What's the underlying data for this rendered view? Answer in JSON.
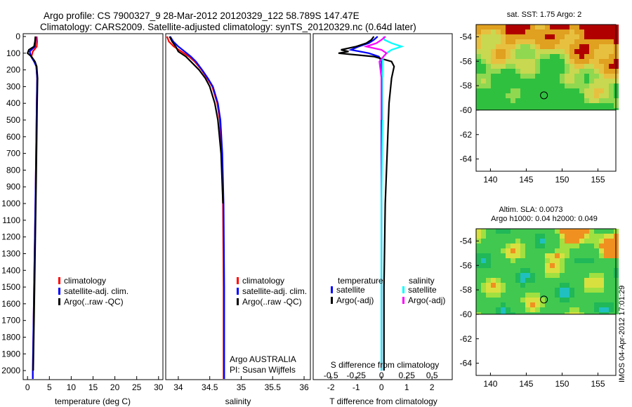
{
  "header": {
    "line1": "Argo profile: CS 7900327_9 28-Mar-2012 20120329_122 58.789S 147.47E",
    "line2": "Climatology: CARS2009. Satellite-adjusted climatology: synTS_20120329.nc (0.64d later)"
  },
  "watermark": "IMOS 04-Apr-2012 17:01:29",
  "chart_data": [
    {
      "id": "temperature",
      "type": "line",
      "xlabel": "temperature (deg C)",
      "ylabel": "",
      "xlim": [
        -1,
        31
      ],
      "ylim": [
        2050,
        0
      ],
      "x_ticks": [
        0,
        5,
        10,
        15,
        20,
        25,
        30
      ],
      "y_ticks": [
        0,
        100,
        200,
        300,
        400,
        500,
        600,
        700,
        800,
        900,
        1000,
        1100,
        1200,
        1300,
        1400,
        1500,
        1600,
        1700,
        1800,
        1900,
        2000
      ],
      "legend": [
        "climatology",
        "satellite-adj. clim.",
        "Argo(..raw -QC)"
      ],
      "legend_placement": "lower-center",
      "series": [
        {
          "name": "climatology",
          "color": "#ff0000",
          "depth": [
            0,
            30,
            60,
            90,
            120,
            150,
            180,
            250,
            400,
            600,
            1000,
            1500,
            2000,
            2050
          ],
          "values": [
            2.1,
            2.2,
            2.1,
            1.2,
            0.9,
            1.6,
            2.0,
            2.2,
            2.1,
            2.0,
            1.8,
            1.5,
            1.2,
            1.2
          ]
        },
        {
          "name": "satellite-adj. clim.",
          "color": "#0000ff",
          "depth": [
            0,
            30,
            60,
            90,
            120,
            150,
            180,
            250,
            400,
            600,
            1000,
            1500,
            2000,
            2050
          ],
          "values": [
            1.9,
            1.8,
            1.7,
            0.5,
            0.8,
            1.5,
            2.0,
            2.2,
            2.1,
            2.0,
            1.8,
            1.5,
            1.2,
            1.2
          ]
        },
        {
          "name": "Argo(..raw -QC)",
          "color": "#000000",
          "depth": [
            0,
            30,
            60,
            80,
            100,
            120,
            150,
            180,
            250,
            400,
            600,
            1000,
            1500,
            2000
          ],
          "values": [
            1.8,
            1.7,
            1.5,
            0.3,
            0.0,
            0.9,
            1.7,
            2.1,
            2.3,
            2.2,
            2.1,
            1.9,
            1.6,
            1.3
          ]
        }
      ]
    },
    {
      "id": "salinity",
      "type": "line",
      "xlabel": "salinity",
      "ylabel": "",
      "xlim": [
        33.8,
        36.1
      ],
      "ylim": [
        2050,
        0
      ],
      "x_ticks": [
        34,
        34.5,
        35,
        35.5,
        36
      ],
      "legend": [
        "climatology",
        "satellite-adj. clim.",
        "Argo(..raw -QC)"
      ],
      "legend_placement": "lower-right",
      "annotation": [
        "Argo AUSTRALIA",
        "PI: Susan Wijffels"
      ],
      "series": [
        {
          "name": "climatology",
          "color": "#ff0000",
          "depth": [
            0,
            30,
            60,
            90,
            120,
            150,
            200,
            250,
            300,
            400,
            500,
            700,
            1000,
            1500,
            2000,
            2050
          ],
          "values": [
            33.82,
            33.85,
            33.93,
            34.05,
            34.17,
            34.26,
            34.37,
            34.46,
            34.54,
            34.62,
            34.66,
            34.69,
            34.71,
            34.72,
            34.72,
            34.72
          ]
        },
        {
          "name": "satellite-adj. clim.",
          "color": "#0000ff",
          "depth": [
            0,
            30,
            60,
            90,
            120,
            150,
            200,
            250,
            300,
            400,
            500,
            700,
            1000,
            1500,
            2000,
            2050
          ],
          "values": [
            33.87,
            33.92,
            34.0,
            34.1,
            34.2,
            34.28,
            34.38,
            34.47,
            34.55,
            34.63,
            34.67,
            34.7,
            34.72,
            34.73,
            34.73,
            34.73
          ]
        },
        {
          "name": "Argo(..raw -QC)",
          "color": "#000000",
          "depth": [
            0,
            30,
            60,
            90,
            120,
            150,
            200,
            250,
            300,
            400,
            500,
            700,
            1000
          ],
          "values": [
            33.86,
            33.9,
            33.96,
            34.0,
            34.12,
            34.2,
            34.33,
            34.43,
            34.5,
            34.58,
            34.63,
            34.68,
            34.71
          ]
        }
      ]
    },
    {
      "id": "differences",
      "type": "line",
      "xlabel": "T difference from climatology",
      "x2label": "S difference from climatology",
      "xlim": [
        -2.7,
        2.8
      ],
      "x_ticks": [
        -2,
        -1,
        0,
        1,
        2
      ],
      "x2lim": [
        -0.675,
        0.7
      ],
      "x2_ticks": [
        -0.5,
        -0.25,
        0,
        0.25,
        0.5
      ],
      "x2_tick_labels": [
        "-0.5",
        "-0.25",
        "0",
        "0.25",
        "0.5"
      ],
      "ylim": [
        2050,
        0
      ],
      "legend_temperature_title": "temperature",
      "legend_salinity_title": "salinity",
      "legend": [
        "satellite",
        "Argo(-adj)",
        "satellite",
        "Argo(-adj)"
      ],
      "legend_placement": "center",
      "series": [
        {
          "name": "satellite",
          "group": "temperature",
          "color": "#0000ff",
          "depth": [
            0,
            20,
            40,
            60,
            80,
            100,
            120,
            150,
            200,
            300,
            500,
            1000,
            1500,
            2000
          ],
          "values": [
            -0.15,
            -0.3,
            -0.5,
            -0.9,
            -1.2,
            -0.5,
            -0.1,
            0.0,
            0.0,
            0.0,
            0.0,
            0.0,
            0.0,
            0.0
          ]
        },
        {
          "name": "Argo(-adj)",
          "group": "temperature",
          "color": "#000000",
          "depth": [
            0,
            20,
            40,
            60,
            80,
            90,
            100,
            120,
            150,
            180,
            250,
            400,
            600,
            1000,
            1500,
            2000
          ],
          "values": [
            -0.3,
            -0.4,
            -0.6,
            -1.0,
            -1.6,
            -1.3,
            -1.7,
            -0.3,
            0.4,
            0.5,
            0.4,
            0.3,
            0.25,
            0.15,
            0.1,
            0.1
          ]
        },
        {
          "name": "satellite",
          "group": "salinity",
          "color": "#00ffff",
          "depth": [
            0,
            20,
            40,
            60,
            80,
            100,
            120,
            150,
            200,
            300,
            500,
            1000,
            1500,
            2000
          ],
          "values": [
            0.02,
            0.03,
            0.1,
            0.2,
            0.1,
            0.05,
            0.02,
            0.01,
            0.01,
            0.01,
            0.01,
            0.0,
            0.0,
            0.0
          ]
        },
        {
          "name": "Argo(-adj)",
          "group": "salinity",
          "color": "#ff00ff",
          "depth": [
            0,
            20,
            40,
            60,
            80,
            100,
            120,
            150,
            200,
            250,
            300,
            400,
            500
          ],
          "values": [
            0.04,
            0.0,
            -0.05,
            -0.15,
            0.0,
            0.05,
            0.02,
            -0.02,
            -0.01,
            0.0,
            0.0,
            0.0,
            0.0
          ]
        }
      ]
    },
    {
      "id": "sst-map",
      "type": "heatmap",
      "title": "sat. SST: 1.75  Argo: 2",
      "xlim": [
        138,
        157.5
      ],
      "ylim": [
        -65,
        -53
      ],
      "x_ticks": [
        140,
        145,
        150,
        155
      ],
      "y_ticks": [
        -54,
        -56,
        -58,
        -60,
        -62,
        -64
      ],
      "y_tick_labels": [
        "-54",
        "-56",
        "-58",
        "-60",
        "-62",
        "-64"
      ],
      "data_lat_range": [
        -60,
        -53
      ],
      "marker": {
        "lon": 147.47,
        "lat": -58.789
      }
    },
    {
      "id": "sla-map",
      "type": "heatmap",
      "title": "Altim. SLA: 0.0073",
      "subtitle": "Argo h1000: 0.04  h2000: 0.049",
      "xlim": [
        138,
        157.5
      ],
      "ylim": [
        -65,
        -53
      ],
      "x_ticks": [
        140,
        145,
        150,
        155
      ],
      "y_ticks": [
        -54,
        -56,
        -58,
        -60,
        -62,
        -64
      ],
      "y_tick_labels": [
        "-54",
        "-56",
        "-58",
        "-60",
        "-62",
        "-64"
      ],
      "data_lat_range": [
        -60,
        -53
      ],
      "marker": {
        "lon": 147.47,
        "lat": -58.789
      }
    }
  ]
}
